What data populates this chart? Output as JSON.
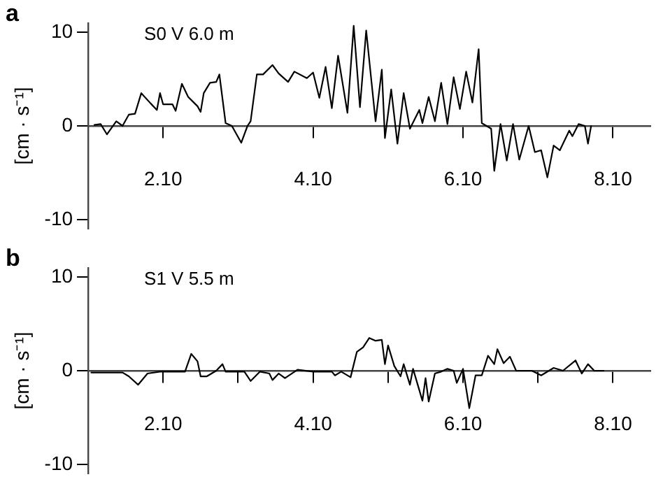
{
  "chart_data": [
    {
      "type": "line",
      "title": "a",
      "ylabel": "[cm · s⁻¹]",
      "annotations": [
        "S0 V 6.0 m"
      ],
      "xlim": [
        "--10-01T00:00",
        "--10-08T12:00"
      ],
      "ylim": [
        -11,
        11
      ],
      "yticks": [
        -10,
        0,
        10
      ],
      "xticks": [
        {
          "value": "--10-02T00:00",
          "label": "2.10"
        },
        {
          "value": "--10-04T00:00",
          "label": "4.10"
        },
        {
          "value": "--10-06T00:00",
          "label": "6.10"
        },
        {
          "value": "--10-08T00:00",
          "label": "8.10"
        }
      ],
      "grid": false,
      "legend": false,
      "marker": "none",
      "line_style": "solid",
      "series": [
        {
          "color": "#000000",
          "x": [
            "--10-01T02:00",
            "--10-01T04:00",
            "--10-01T06:00",
            "--10-01T09:00",
            "--10-01T11:00",
            "--10-01T13:00",
            "--10-01T15:00",
            "--10-01T17:00",
            "--10-01T20:00",
            "--10-01T22:00",
            "--10-01T23:00",
            "--10-02T00:00",
            "--10-02T03:00",
            "--10-02T04:00",
            "--10-02T06:00",
            "--10-02T08:00",
            "--10-02T11:00",
            "--10-02T12:00",
            "--10-02T13:00",
            "--10-02T15:00",
            "--10-02T17:00",
            "--10-02T18:00",
            "--10-02T20:00",
            "--10-02T22:00",
            "--10-03T01:00",
            "--10-03T03:00",
            "--10-03T04:00",
            "--10-03T06:00",
            "--10-03T08:00",
            "--10-03T11:00",
            "--10-03T13:00",
            "--10-03T16:00",
            "--10-03T18:00",
            "--10-03T22:00",
            "--10-04T00:00",
            "--10-04T02:00",
            "--10-04T04:00",
            "--10-04T06:00",
            "--10-04T08:00",
            "--10-04T11:00",
            "--10-04T13:00",
            "--10-04T15:00",
            "--10-04T17:00",
            "--10-04T20:00",
            "--10-04T22:00",
            "--10-04T23:00",
            "--10-05T01:00",
            "--10-05T03:00",
            "--10-05T05:00",
            "--10-05T07:00",
            "--10-05T10:00",
            "--10-05T11:00",
            "--10-05T13:00",
            "--10-05T15:00",
            "--10-05T17:00",
            "--10-05T19:00",
            "--10-05T21:00",
            "--10-05T23:00",
            "--10-06T01:00",
            "--10-06T03:00",
            "--10-06T05:00",
            "--10-06T06:00",
            "--10-06T09:00",
            "--10-06T10:00",
            "--10-06T12:00",
            "--10-06T14:00",
            "--10-06T16:00",
            "--10-06T18:00",
            "--10-06T21:00",
            "--10-06T23:00",
            "--10-07T01:00",
            "--10-07T03:00",
            "--10-07T05:00",
            "--10-07T07:00",
            "--10-07T10:00",
            "--10-07T11:00",
            "--10-07T13:00",
            "--10-07T15:00",
            "--10-07T16:00",
            "--10-07T17:00"
          ],
          "values": [
            0.1,
            0.2,
            -0.9,
            0.5,
            0,
            1.2,
            1.3,
            3.5,
            2.4,
            1.7,
            3.5,
            2.3,
            2.3,
            1.6,
            4.5,
            3.1,
            2.1,
            1.5,
            3.5,
            4.6,
            4.7,
            5.5,
            0.3,
            0,
            -1.8,
            0,
            0.5,
            5.5,
            5.5,
            6.5,
            5.6,
            4.7,
            5.8,
            5.1,
            5.7,
            3,
            6.3,
            1.9,
            7.5,
            1.4,
            10.7,
            2,
            10.2,
            0.5,
            6,
            -1.3,
            3.9,
            -1.9,
            3.5,
            -0.3,
            1.7,
            0.3,
            3.1,
            0.5,
            4.6,
            0.2,
            5.2,
            1.8,
            5.8,
            2.5,
            8.2,
            0.3,
            -0.3,
            -4.8,
            0.2,
            -3.7,
            0.2,
            -3.6,
            0,
            -2.8,
            -2.6,
            -5.5,
            -2.1,
            -2.6,
            -0.5,
            -1.1,
            0.2,
            0,
            -1.9,
            0
          ]
        }
      ]
    },
    {
      "type": "line",
      "title": "b",
      "ylabel": "[cm · s⁻¹]",
      "annotations": [
        "S1 V 5.5 m"
      ],
      "xlim": [
        "--10-01T00:00",
        "--10-08T12:00"
      ],
      "ylim": [
        -11,
        11
      ],
      "yticks": [
        -10,
        0,
        10
      ],
      "xticks": [
        {
          "value": "--10-02T00:00",
          "label": "2.10"
        },
        {
          "value": "--10-03T00:00",
          "label": null
        },
        {
          "value": "--10-04T00:00",
          "label": "4.10"
        },
        {
          "value": "--10-05T00:00",
          "label": null
        },
        {
          "value": "--10-06T00:00",
          "label": "6.10"
        },
        {
          "value": "--10-07T00:00",
          "label": null
        },
        {
          "value": "--10-08T00:00",
          "label": "8.10"
        }
      ],
      "grid": false,
      "legend": false,
      "marker": "none",
      "line_style": "solid",
      "series": [
        {
          "color": "#000000",
          "x": [
            "--10-01T01:00",
            "--10-01T11:00",
            "--10-01T13:00",
            "--10-01T16:00",
            "--10-01T19:00",
            "--10-01T23:00",
            "--10-02T07:00",
            "--10-02T09:00",
            "--10-02T11:00",
            "--10-02T12:00",
            "--10-02T14:00",
            "--10-02T17:00",
            "--10-02T19:00",
            "--10-02T20:00",
            "--10-03T02:00",
            "--10-03T04:00",
            "--10-03T07:00",
            "--10-03T10:00",
            "--10-03T11:00",
            "--10-03T13:00",
            "--10-03T15:00",
            "--10-03T19:00",
            "--10-04T00:00",
            "--10-04T06:00",
            "--10-04T07:00",
            "--10-04T09:00",
            "--10-04T12:00",
            "--10-04T14:00",
            "--10-04T16:00",
            "--10-04T18:00",
            "--10-04T20:00",
            "--10-04T22:00",
            "--10-04T23:00",
            "--10-05T00:00",
            "--10-05T02:00",
            "--10-05T04:00",
            "--10-05T05:00",
            "--10-05T07:00",
            "--10-05T08:00",
            "--10-05T11:00",
            "--10-05T12:00",
            "--10-05T13:00",
            "--10-05T15:00",
            "--10-05T17:00",
            "--10-05T19:00",
            "--10-05T21:00",
            "--10-05T22:00",
            "--10-06T00:00",
            "--10-06T02:00",
            "--10-06T04:00",
            "--10-06T06:00",
            "--10-06T08:00",
            "--10-06T10:00",
            "--10-06T11:00",
            "--10-06T13:00",
            "--10-06T15:00",
            "--10-06T17:00",
            "--10-06T22:00",
            "--10-07T01:00",
            "--10-07T05:00",
            "--10-07T08:00",
            "--10-07T12:00",
            "--10-07T14:00",
            "--10-07T16:00",
            "--10-07T18:00",
            "--10-07T21:00"
          ],
          "values": [
            -0.2,
            -0.2,
            -0.6,
            -1.5,
            -0.3,
            -0.1,
            -0.1,
            1.8,
            1,
            -0.6,
            -0.6,
            0,
            0.7,
            -0.1,
            -0.1,
            -1.1,
            -0.1,
            -0.3,
            -1,
            -0.3,
            -0.8,
            0.1,
            -0.1,
            -0.1,
            -0.5,
            -0.1,
            -0.7,
            2,
            2.5,
            3.5,
            3.2,
            3.3,
            0.7,
            2.7,
            0.5,
            -0.6,
            0.7,
            -1.5,
            0.2,
            -3.2,
            -0.8,
            -3.3,
            -0.3,
            -0.1,
            0.2,
            0,
            -1.3,
            0.2,
            -4,
            -0.5,
            -0.5,
            1.6,
            0.7,
            2.3,
            0.8,
            1.5,
            0,
            0,
            -0.5,
            0.3,
            0,
            1.1,
            -0.3,
            0.7,
            0,
            0
          ]
        }
      ]
    }
  ]
}
